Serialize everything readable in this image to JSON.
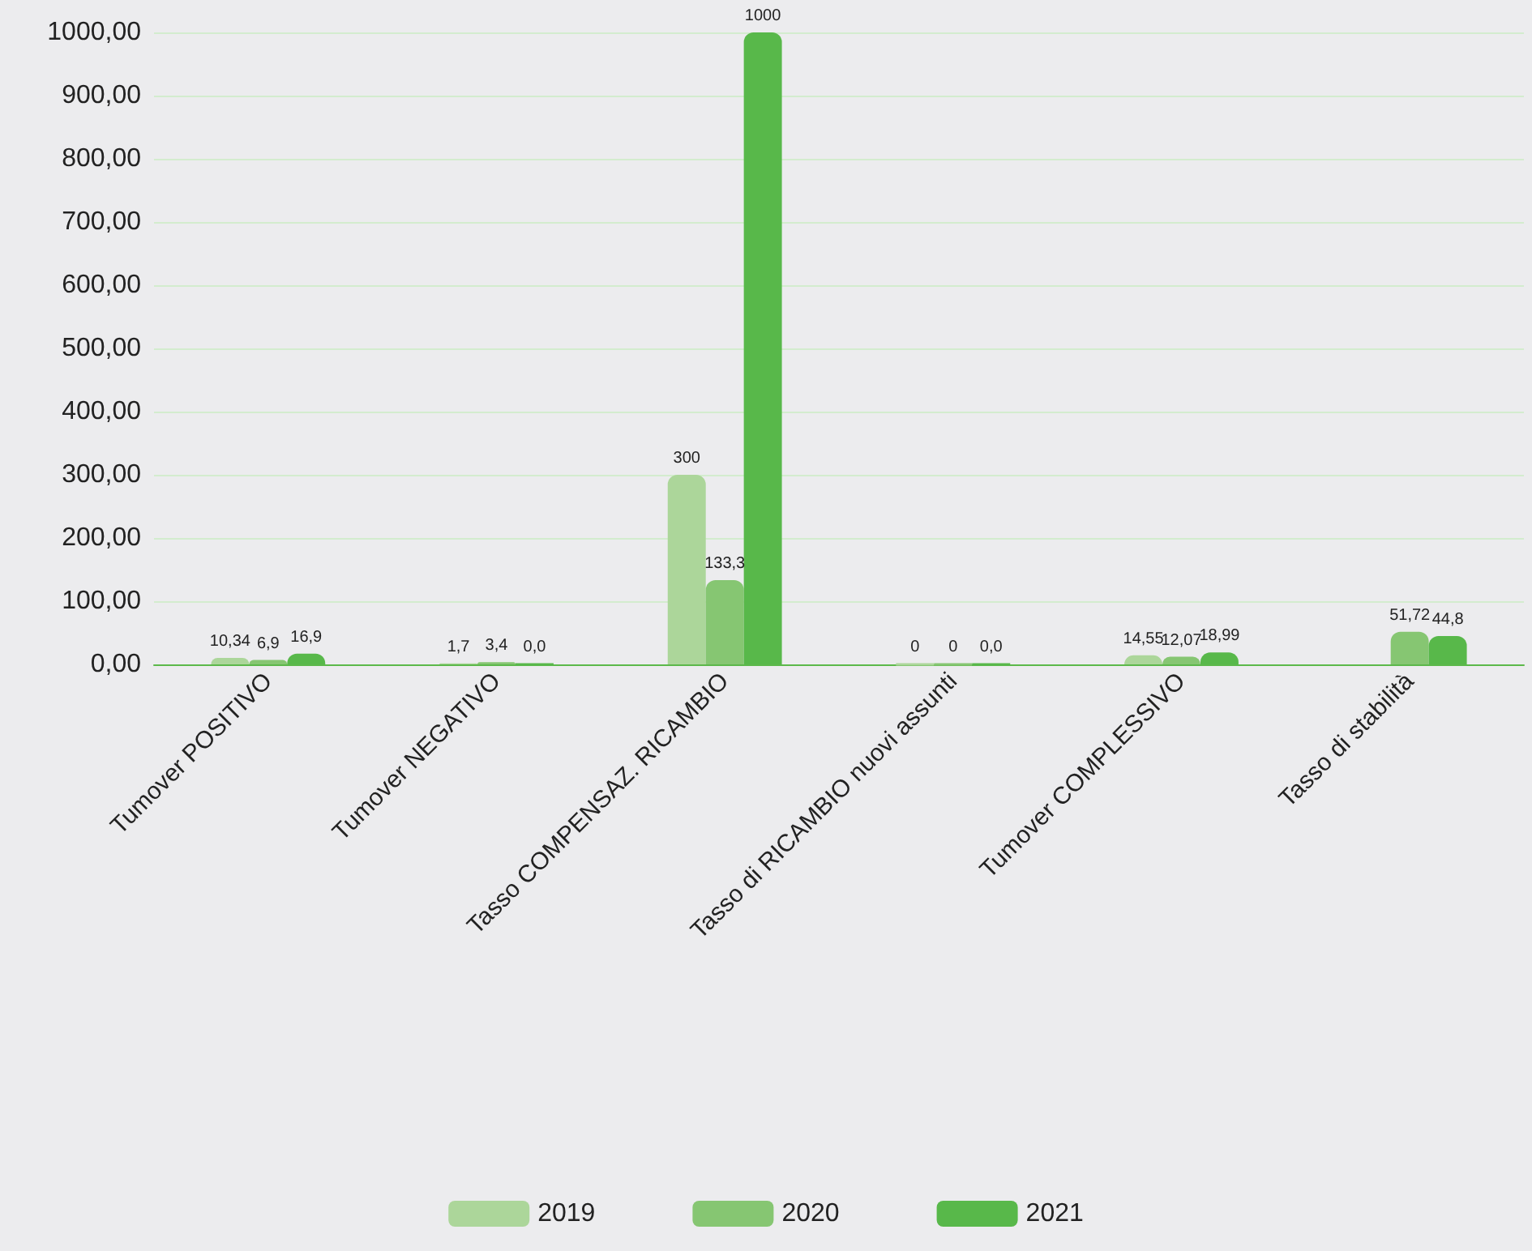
{
  "chart_data": {
    "type": "bar",
    "categories": [
      "Tumover POSITIVO",
      "Tumover NEGATIVO",
      "Tasso COMPENSAZ. RICAMBIO",
      "Tasso di RICAMBIO nuovi assunti",
      "Tumover COMPLESSIVO",
      "Tasso di stabilità"
    ],
    "series": [
      {
        "name": "2019",
        "color": "#acd69a",
        "values": [
          10.34,
          1.7,
          300,
          0,
          14.55,
          null
        ],
        "value_labels": [
          "10,34",
          "1,7",
          "300",
          "0",
          "14,55",
          null
        ]
      },
      {
        "name": "2020",
        "color": "#86c672",
        "values": [
          6.9,
          3.4,
          133.3,
          0,
          12.07,
          51.72
        ],
        "value_labels": [
          "6,9",
          "3,4",
          "133,3",
          "0",
          "12,07",
          "51,72"
        ]
      },
      {
        "name": "2021",
        "color": "#58b84a",
        "values": [
          16.9,
          0,
          1000,
          0,
          18.99,
          44.8
        ],
        "value_labels": [
          "16,9",
          "0,0",
          "1000",
          "0,0",
          "18,99",
          "44,8"
        ]
      }
    ],
    "ylim": [
      0,
      1000
    ],
    "yticks": [
      {
        "value": 0,
        "label": "0,00"
      },
      {
        "value": 100,
        "label": "100,00"
      },
      {
        "value": 200,
        "label": "200,00"
      },
      {
        "value": 300,
        "label": "300,00"
      },
      {
        "value": 400,
        "label": "400,00"
      },
      {
        "value": 500,
        "label": "500,00"
      },
      {
        "value": 600,
        "label": "600,00"
      },
      {
        "value": 700,
        "label": "700,00"
      },
      {
        "value": 800,
        "label": "800,00"
      },
      {
        "value": 900,
        "label": "900,00"
      },
      {
        "value": 1000,
        "label": "1000,00"
      }
    ],
    "grid": "y",
    "legend": "bottom"
  }
}
